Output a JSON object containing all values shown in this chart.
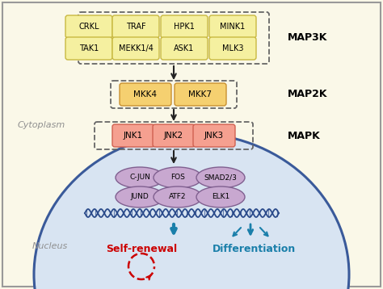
{
  "bg_color": "#faf8e8",
  "border_color": "#999999",
  "map3k_box_color": "#f5f0a0",
  "map3k_box_edge": "#c8b840",
  "map2k_box_color": "#f5d070",
  "map2k_box_edge": "#c89030",
  "mapk_box_color": "#f5a090",
  "mapk_box_edge": "#d06050",
  "tf_ellipse_color": "#c8a8d0",
  "tf_ellipse_edge": "#806090",
  "nucleus_color": "#d8e4f2",
  "nucleus_edge": "#3a5a9a",
  "label_map3k": "MAP3K",
  "label_map2k": "MAP2K",
  "label_mapk": "MAPK",
  "label_cytoplasm": "Cytoplasm",
  "label_nucleus": "Nucleus",
  "label_selfrenewal": "Self-renewal",
  "label_differentiation": "Differentiation",
  "arrow_color": "#222222",
  "selfrenewal_color": "#cc0000",
  "differentiation_color": "#1a7faa",
  "dna_color": "#2a4a8a",
  "map3k_row1": [
    "CRKL",
    "TRAF",
    "HPK1",
    "MINK1"
  ],
  "map3k_row2": [
    "TAK1",
    "MEKK1/4",
    "ASK1",
    "MLK3"
  ],
  "map2k_items": [
    "MKK4",
    "MKK7"
  ],
  "mapk_items": [
    "JNK1",
    "JNK2",
    "JNK3"
  ],
  "tf_row1": [
    "C-JUN",
    "FOS",
    "SMAD2/3"
  ],
  "tf_row2": [
    "JUND",
    "ATF2",
    "ELK1"
  ]
}
